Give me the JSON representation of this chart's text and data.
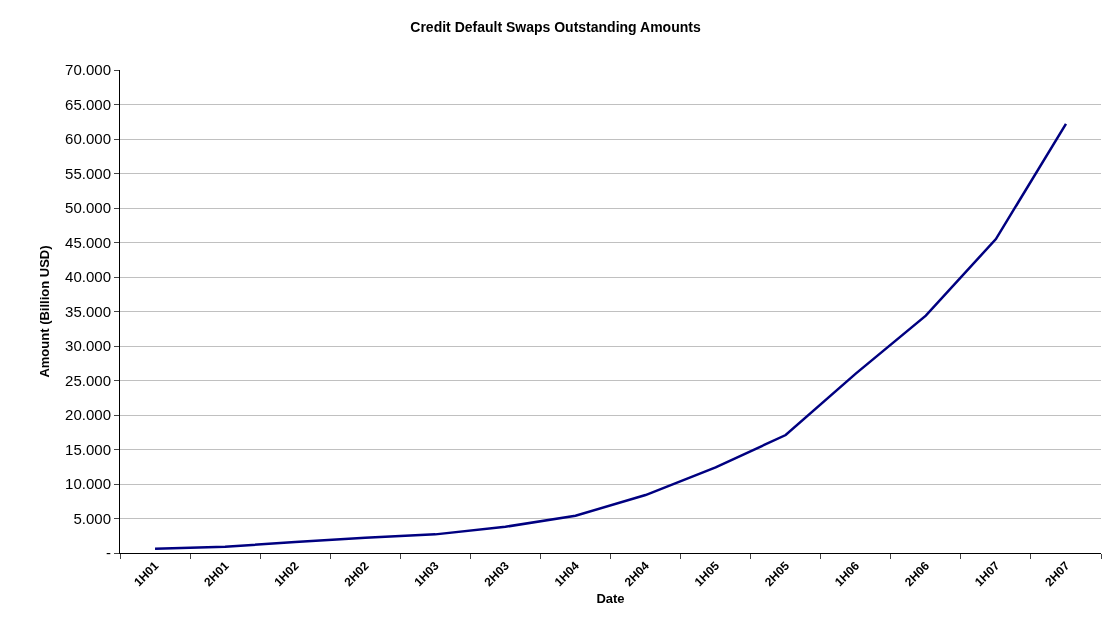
{
  "chart_data": {
    "type": "line",
    "title": "Credit Default Swaps Outstanding Amounts",
    "xlabel": "Date",
    "ylabel": "Amount (Billion USD)",
    "categories": [
      "1H01",
      "2H01",
      "1H02",
      "2H02",
      "1H03",
      "2H03",
      "1H04",
      "2H04",
      "1H05",
      "2H05",
      "1H06",
      "2H06",
      "1H07",
      "2H07"
    ],
    "series": [
      {
        "color": "#000080",
        "values": [
          600,
          900,
          1600,
          2200,
          2700,
          3800,
          5400,
          8400,
          12400,
          17100,
          26000,
          34400,
          45500,
          62200
        ]
      }
    ],
    "ylim": [
      0,
      70000
    ],
    "yticks": [
      {
        "value": 0,
        "label": "-"
      },
      {
        "value": 5000,
        "label": "5.000"
      },
      {
        "value": 10000,
        "label": "10.000"
      },
      {
        "value": 15000,
        "label": "15.000"
      },
      {
        "value": 20000,
        "label": "20.000"
      },
      {
        "value": 25000,
        "label": "25.000"
      },
      {
        "value": 30000,
        "label": "30.000"
      },
      {
        "value": 35000,
        "label": "35.000"
      },
      {
        "value": 40000,
        "label": "40.000"
      },
      {
        "value": 45000,
        "label": "45.000"
      },
      {
        "value": 50000,
        "label": "50.000"
      },
      {
        "value": 55000,
        "label": "55.000"
      },
      {
        "value": 60000,
        "label": "60.000"
      },
      {
        "value": 65000,
        "label": "65.000"
      },
      {
        "value": 70000,
        "label": "70.000"
      }
    ],
    "grid": "y",
    "marker": "none",
    "line_style": "solid"
  }
}
